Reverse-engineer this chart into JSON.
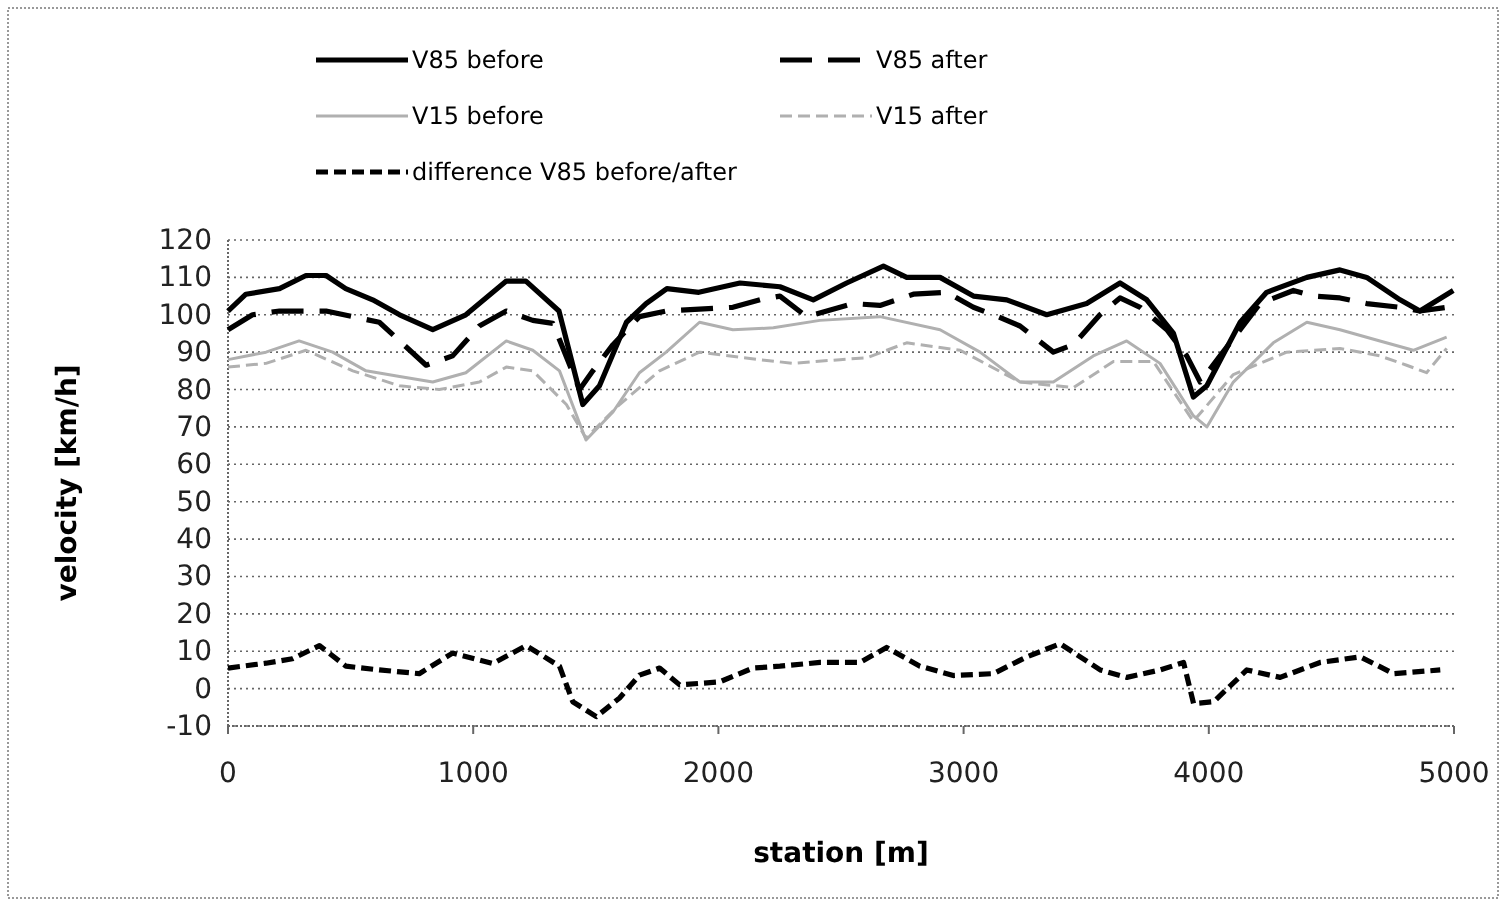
{
  "chart_data": {
    "type": "line",
    "xlabel": "station [m]",
    "ylabel": "velocity [km/h]",
    "xlim": [
      0,
      5000
    ],
    "xticks": [
      0,
      1000,
      2000,
      3000,
      4000,
      5000
    ],
    "ylim": [
      -10,
      120
    ],
    "yticks": [
      -10,
      0,
      10,
      20,
      30,
      40,
      50,
      60,
      70,
      80,
      90,
      100,
      110,
      120
    ],
    "grid": "y",
    "legend": "top",
    "series": [
      {
        "name": "V85 before",
        "color": "#000000",
        "line_style": "solid",
        "x": [
          0,
          73,
          210,
          318,
          400,
          480,
          590,
          700,
          835,
          970,
          1135,
          1215,
          1350,
          1447,
          1515,
          1625,
          1705,
          1790,
          1920,
          2088,
          2251,
          2387,
          2523,
          2673,
          2768,
          2904,
          3040,
          3176,
          3339,
          3502,
          3638,
          3747,
          3856,
          3937,
          3992,
          4128,
          4236,
          4400,
          4535,
          4644,
          4780,
          4861,
          4997
        ],
        "values": [
          101,
          105.5,
          107,
          110.5,
          110.5,
          107,
          104,
          100,
          96,
          100,
          109,
          109,
          101,
          76,
          81,
          98,
          103,
          107,
          106,
          108.5,
          107.5,
          104,
          108.5,
          113,
          110,
          110,
          105,
          104,
          100,
          103,
          108.5,
          104,
          95,
          78,
          81,
          98,
          106,
          110,
          112,
          110,
          104,
          101,
          106.5
        ]
      },
      {
        "name": "V85 after",
        "color": "#000000",
        "line_style": "longdash",
        "x": [
          0,
          100,
          210,
          400,
          617,
          808,
          916,
          1025,
          1135,
          1243,
          1325,
          1434,
          1488,
          1570,
          1678,
          1787,
          2059,
          2170,
          2251,
          2360,
          2550,
          2659,
          2795,
          2931,
          3040,
          3121,
          3230,
          3366,
          3448,
          3556,
          3638,
          3720,
          3829,
          3910,
          3965,
          4046,
          4209,
          4345,
          4427,
          4535,
          4644,
          4780,
          4861,
          4970
        ],
        "values": [
          96,
          100,
          101,
          101,
          98,
          86.5,
          89,
          97,
          101,
          98.5,
          97.7,
          80,
          85,
          92,
          99.5,
          101,
          102,
          104,
          105,
          99.5,
          103,
          102.5,
          105.5,
          106,
          102,
          100,
          97,
          90,
          92,
          100,
          104.5,
          102,
          96,
          89,
          82,
          89,
          103,
          106.5,
          105,
          104.5,
          103,
          102,
          101,
          102
        ]
      },
      {
        "name": "V15 before",
        "color": "#b0b0b0",
        "line_style": "solid",
        "x": [
          0,
          155,
          290,
          427,
          563,
          700,
          835,
          970,
          1135,
          1243,
          1352,
          1460,
          1570,
          1678,
          1787,
          1923,
          2059,
          2224,
          2414,
          2659,
          2904,
          3067,
          3230,
          3366,
          3529,
          3665,
          3801,
          3937,
          3992,
          4100,
          4263,
          4400,
          4535,
          4698,
          4834,
          4970
        ],
        "values": [
          88,
          90,
          93,
          90,
          85,
          83.5,
          82,
          84.5,
          93,
          90.5,
          85,
          66.5,
          74,
          84.5,
          90,
          98,
          96,
          96.5,
          98.5,
          99.5,
          96,
          90,
          82,
          82,
          89,
          93,
          87,
          73,
          70,
          82,
          92.5,
          98,
          96,
          93,
          90.5,
          94
        ]
      },
      {
        "name": "V15 after",
        "color": "#b0b0b0",
        "line_style": "dashed",
        "x": [
          0,
          155,
          318,
          509,
          700,
          862,
          1025,
          1135,
          1243,
          1380,
          1460,
          1597,
          1760,
          1923,
          2168,
          2305,
          2496,
          2605,
          2768,
          2986,
          3230,
          3448,
          3611,
          3774,
          3937,
          4100,
          4318,
          4535,
          4698,
          4807,
          4888,
          4970
        ],
        "values": [
          86,
          87,
          90.5,
          85,
          81,
          80,
          82,
          86,
          85,
          76,
          67,
          76,
          85,
          90,
          88,
          87,
          88,
          88.5,
          92.5,
          90.5,
          82,
          80.5,
          87.5,
          87.5,
          71.5,
          84,
          90,
          91,
          89,
          86.5,
          84.5,
          91
        ]
      },
      {
        "name": "difference V85 before/after",
        "color": "#000000",
        "line_style": "dashed",
        "x": [
          0,
          155,
          263,
          373,
          481,
          617,
          780,
          916,
          1080,
          1216,
          1352,
          1406,
          1502,
          1597,
          1678,
          1760,
          1842,
          2005,
          2141,
          2251,
          2414,
          2577,
          2686,
          2822,
          2958,
          3121,
          3258,
          3394,
          3557,
          3666,
          3802,
          3897,
          3938,
          4020,
          4155,
          4291,
          4454,
          4618,
          4754,
          4944
        ],
        "values": [
          5.5,
          6.8,
          8,
          11.5,
          6,
          5,
          4,
          9.5,
          6.7,
          11.5,
          6,
          -3.5,
          -7.5,
          -2.5,
          3.6,
          5.5,
          1,
          1.8,
          5.5,
          6,
          7,
          7,
          11,
          6,
          3.5,
          4,
          8.5,
          12,
          5,
          3,
          5,
          7,
          -4,
          -3.5,
          5,
          3,
          7,
          8.5,
          4,
          5
        ]
      }
    ]
  }
}
